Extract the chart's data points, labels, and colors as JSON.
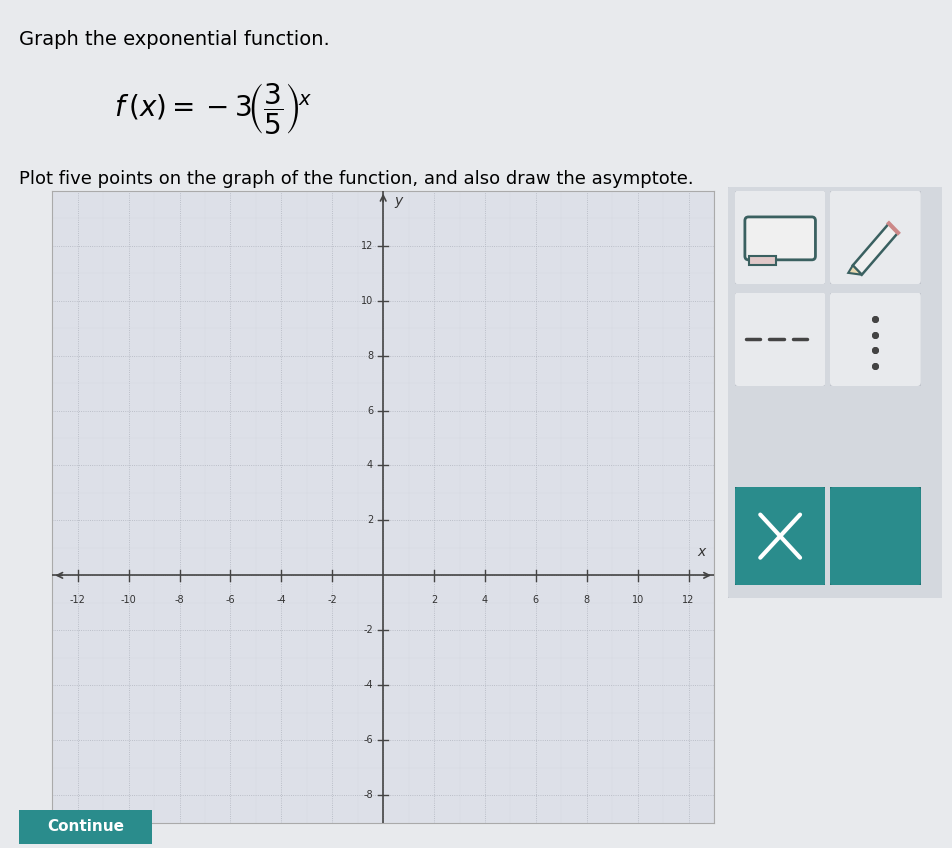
{
  "title_line1": "Graph the exponential function.",
  "subtitle": "Plot five points on the graph of the function, and also draw the asymptote.",
  "xlim": [
    -13,
    13
  ],
  "ylim": [
    -9,
    14
  ],
  "xticks": [
    -12,
    -10,
    -8,
    -6,
    -4,
    -2,
    2,
    4,
    6,
    8,
    10,
    12
  ],
  "yticks": [
    -8,
    -6,
    -4,
    -2,
    2,
    4,
    6,
    8,
    10,
    12
  ],
  "background_color": "#e8eaed",
  "plot_bg_color": "#dde0e8",
  "grid_major_color": "#b0b4be",
  "grid_minor_color": "#c8ccd4",
  "axis_color": "#555555",
  "panel_bg": "#e0e2e6",
  "btn_bg": "#e8eaed",
  "btn_border": "#c0c4cc",
  "teal_color": "#2a8c8c",
  "teal_dark": "#1e7070"
}
